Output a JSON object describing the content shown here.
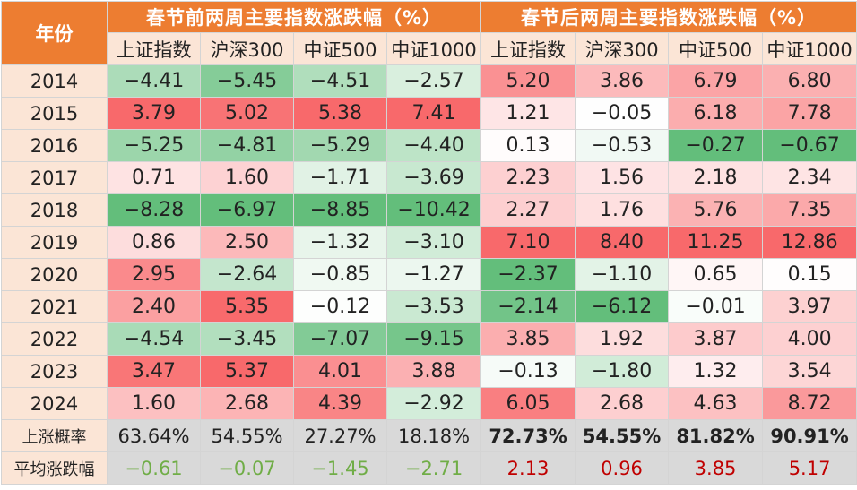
{
  "chart_data": {
    "type": "table",
    "year_header": "年份",
    "group_headers": [
      "春节前两周主要指数涨跌幅（%）",
      "春节后两周主要指数涨跌幅（%）"
    ],
    "columns": [
      "上证指数",
      "沪深300",
      "中证500",
      "中证1000",
      "上证指数",
      "沪深300",
      "中证500",
      "中证1000"
    ],
    "rows": [
      {
        "year": "2014",
        "values": [
          "-4.41",
          "-5.45",
          "-4.51",
          "-2.57",
          "5.20",
          "3.86",
          "6.79",
          "6.80"
        ]
      },
      {
        "year": "2015",
        "values": [
          "3.79",
          "5.02",
          "5.38",
          "7.41",
          "1.21",
          "-0.05",
          "6.18",
          "7.78"
        ]
      },
      {
        "year": "2016",
        "values": [
          "-5.25",
          "-4.81",
          "-5.29",
          "-4.40",
          "0.13",
          "-0.53",
          "-0.27",
          "-0.67"
        ]
      },
      {
        "year": "2017",
        "values": [
          "0.71",
          "1.60",
          "-1.71",
          "-3.69",
          "2.23",
          "1.56",
          "2.18",
          "2.34"
        ]
      },
      {
        "year": "2018",
        "values": [
          "-8.28",
          "-6.97",
          "-8.85",
          "-10.42",
          "2.27",
          "1.76",
          "5.76",
          "7.35"
        ]
      },
      {
        "year": "2019",
        "values": [
          "0.86",
          "2.50",
          "-1.32",
          "-3.10",
          "7.10",
          "8.40",
          "11.25",
          "12.86"
        ]
      },
      {
        "year": "2020",
        "values": [
          "2.95",
          "-2.64",
          "-0.85",
          "-1.27",
          "-2.37",
          "-1.10",
          "0.65",
          "0.15"
        ]
      },
      {
        "year": "2021",
        "values": [
          "2.40",
          "5.35",
          "-0.12",
          "-3.53",
          "-2.14",
          "-6.12",
          "-0.01",
          "3.97"
        ]
      },
      {
        "year": "2022",
        "values": [
          "-4.54",
          "-3.45",
          "-7.07",
          "-9.15",
          "3.85",
          "1.92",
          "3.87",
          "4.00"
        ]
      },
      {
        "year": "2023",
        "values": [
          "3.47",
          "5.37",
          "4.01",
          "3.88",
          "-0.13",
          "-1.80",
          "1.32",
          "3.54"
        ]
      },
      {
        "year": "2024",
        "values": [
          "1.60",
          "2.68",
          "4.39",
          "-2.92",
          "6.05",
          "2.68",
          "4.63",
          "8.72"
        ]
      }
    ],
    "up_prob_label": "上涨概率",
    "up_prob": [
      "63.64%",
      "54.55%",
      "27.27%",
      "18.18%",
      "72.73%",
      "54.55%",
      "81.82%",
      "90.91%"
    ],
    "avg_label": "平均涨跌幅",
    "avg": [
      "-0.61",
      "-0.07",
      "-1.45",
      "-2.71",
      "2.13",
      "0.96",
      "3.85",
      "5.17"
    ]
  },
  "colors": {
    "header_bg": "#ed7d31",
    "label_bg": "#fbe5d6",
    "stat_bg": "#d9d9d9",
    "pos_max": "#f8696b",
    "neg_max": "#63be7b",
    "avg_pos_text": "#c00000",
    "avg_neg_text": "#70ad47"
  }
}
